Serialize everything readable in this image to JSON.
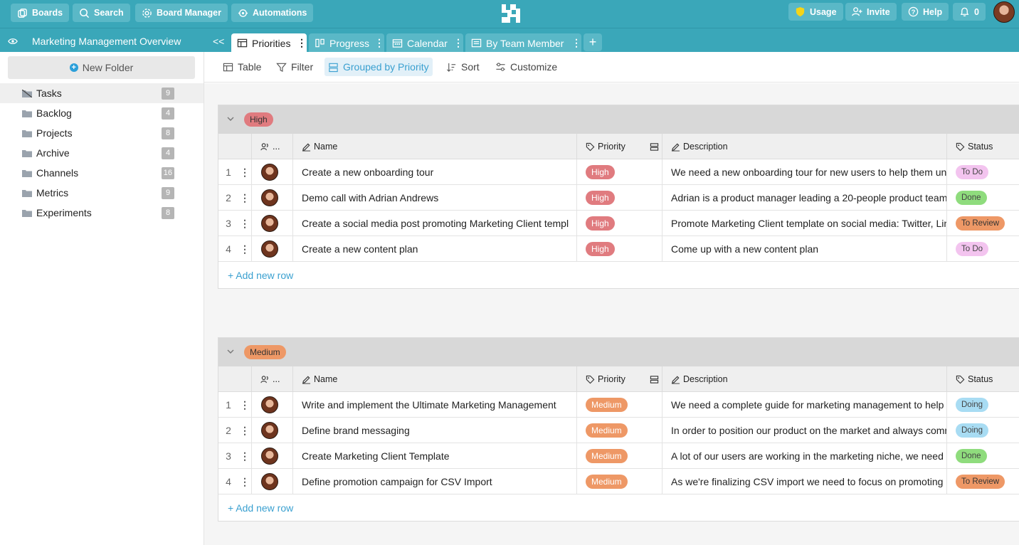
{
  "topbar": {
    "boards": "Boards",
    "search": "Search",
    "board_manager": "Board Manager",
    "automations": "Automations",
    "usage": "Usage",
    "invite": "Invite",
    "help": "Help",
    "notifications_count": "0"
  },
  "board": {
    "title": "Marketing Management Overview",
    "collapse": "<<"
  },
  "tabs": [
    {
      "label": "Priorities",
      "icon": "table-icon"
    },
    {
      "label": "Progress",
      "icon": "kanban-icon"
    },
    {
      "label": "Calendar",
      "icon": "calendar-icon"
    },
    {
      "label": "By Team Member",
      "icon": "list-icon"
    }
  ],
  "sidebar": {
    "new_folder": "New Folder",
    "items": [
      {
        "label": "Tasks",
        "count": "9"
      },
      {
        "label": "Backlog",
        "count": "4"
      },
      {
        "label": "Projects",
        "count": "8"
      },
      {
        "label": "Archive",
        "count": "4"
      },
      {
        "label": "Channels",
        "count": "16"
      },
      {
        "label": "Metrics",
        "count": "9"
      },
      {
        "label": "Experiments",
        "count": "8"
      }
    ]
  },
  "toolbar": {
    "table": "Table",
    "filter": "Filter",
    "grouped": "Grouped by Priority",
    "sort": "Sort",
    "customize": "Customize"
  },
  "columns": {
    "assignee": "...",
    "name": "Name",
    "priority": "Priority",
    "description": "Description",
    "status": "Status"
  },
  "groups": [
    {
      "label": "High",
      "rows": [
        {
          "num": "1",
          "name": "Create a new onboarding tour",
          "priority": "High",
          "description": "We need a new onboarding tour for new users to help them understand",
          "status": "To Do"
        },
        {
          "num": "2",
          "name": "Demo call with Adrian Andrews",
          "priority": "High",
          "description": "Adrian is a product manager leading a 20-people product team",
          "status": "Done"
        },
        {
          "num": "3",
          "name": "Create a social media post promoting Marketing Client template",
          "priority": "High",
          "description": "Promote Marketing Client template on social media: Twitter, LinkedIn",
          "status": "To Review"
        },
        {
          "num": "4",
          "name": "Create a new content plan",
          "priority": "High",
          "description": "Come up with a new content plan",
          "status": "To Do"
        }
      ],
      "add_row": "+ Add new row"
    },
    {
      "label": "Medium",
      "rows": [
        {
          "num": "1",
          "name": "Write and implement the Ultimate Marketing Management",
          "priority": "Medium",
          "description": "We need a complete guide for marketing management to help",
          "status": "Doing"
        },
        {
          "num": "2",
          "name": "Define brand messaging",
          "priority": "Medium",
          "description": "In order to position our product on the market and always communicate",
          "status": "Doing"
        },
        {
          "num": "3",
          "name": "Create Marketing Client Template",
          "priority": "Medium",
          "description": "A lot of our users are working in the marketing niche, we need",
          "status": "Done"
        },
        {
          "num": "4",
          "name": "Define promotion campaign for CSV Import",
          "priority": "Medium",
          "description": "As we're finalizing CSV import we need to focus on promoting it",
          "status": "To Review"
        }
      ],
      "add_row": "+ Add new row"
    }
  ],
  "colors": {
    "brand": "#3aa7b9",
    "high": "#e07b7f",
    "medium": "#ee9866",
    "todo": "#f3c4ef",
    "done": "#8fdc7d",
    "doing": "#a8dcf3",
    "link": "#3aa0d0"
  }
}
